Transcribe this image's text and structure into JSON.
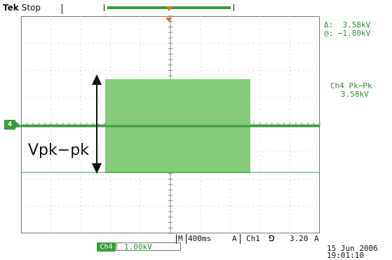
{
  "header": {
    "brand": "Tek",
    "state": "Stop"
  },
  "cursor_readout": {
    "delta_label": "Δ:",
    "delta_value": "3.58kV",
    "at_label": "@:",
    "at_value": "−1.80kV"
  },
  "measurement": {
    "title": "Ch4 Pk−Pk",
    "value": "3.58kV"
  },
  "channel_marker": "4",
  "annotation": {
    "label": "Vpk−pk"
  },
  "status_bar": {
    "mode": "M",
    "timebase": "400ms",
    "trigger_letter": "A",
    "trigger_source": "Ch1",
    "trigger_slope": "⅁",
    "trigger_level": "3.20",
    "trigger_units": "A"
  },
  "channel_scale": {
    "badge": "Ch4",
    "value": "1.00kV"
  },
  "datetime": {
    "date": "15 Jun 2006",
    "time": "19:01:10"
  },
  "colors": {
    "trace": "#3c9c3c",
    "burst": "#85cc7a",
    "trigger_marker": "#e07a10"
  }
}
